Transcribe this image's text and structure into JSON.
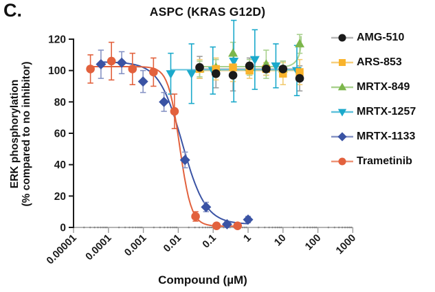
{
  "panel_label": "C.",
  "title": "ASPC (KRAS G12D)",
  "axes": {
    "x": {
      "label": "Compound (µM)",
      "scale": "log",
      "min_exp": -5,
      "max_exp": 3,
      "ticks": [
        "0.00001",
        "0.0001",
        "0.001",
        "0.01",
        "0.1",
        "1",
        "10",
        "100",
        "1000"
      ]
    },
    "y": {
      "label_line1": "ERK phosphorylation",
      "label_line2": "(% compared to no inhibitor)",
      "ticks": [
        0,
        20,
        40,
        60,
        80,
        100,
        120
      ],
      "range": [
        0,
        120
      ]
    }
  },
  "legend": {
    "position": "right"
  },
  "chart_data": {
    "type": "scatter",
    "subtype": "dose-response-curves",
    "title": "ASPC (KRAS G12D)",
    "xlabel": "Compound (µM)",
    "ylabel": "ERK phosphorylation (% compared to no inhibitor)",
    "xscale": "log",
    "xlim": [
      1e-05,
      1000
    ],
    "ylim": [
      0,
      120
    ],
    "grid": false,
    "series": [
      {
        "name": "AMG-510",
        "marker": "circle",
        "color": "#1a1a1a",
        "fit_line": "#b5b5b5",
        "err_color": "#9c9c9c",
        "legend_line": "#b5b5b5",
        "x": [
          0.041,
          0.12,
          0.37,
          1.1,
          3.3,
          10,
          30
        ],
        "y": [
          102,
          98,
          97,
          103,
          101,
          101,
          95
        ],
        "err": [
          7,
          9,
          10,
          5,
          4,
          5,
          8
        ],
        "fit": {
          "type": "flat",
          "level": 101
        }
      },
      {
        "name": "ARS-853",
        "marker": "square",
        "color": "#F9B32B",
        "fit_line": "#F6CF7D",
        "err_color": "#F2CB72",
        "legend_line": "#F6CF7D",
        "x": [
          0.041,
          0.12,
          0.37,
          1.1,
          3.3,
          10,
          30
        ],
        "y": [
          101,
          101,
          102,
          100,
          101,
          98,
          99
        ],
        "err": [
          6,
          7,
          9,
          5,
          4,
          7,
          8
        ],
        "fit": {
          "type": "flat",
          "level": 100
        }
      },
      {
        "name": "MRTX-849",
        "marker": "triangle-up",
        "color": "#7CB64B",
        "fit_line": "#A9D18E",
        "err_color": "#A9D18E",
        "legend_line": "#A9D18E",
        "x": [
          0.041,
          0.12,
          0.37,
          1.1,
          3.3,
          10,
          30
        ],
        "y": [
          101,
          102,
          111,
          102,
          104,
          101,
          117
        ],
        "err": [
          5,
          5,
          7,
          5,
          9,
          5,
          6
        ],
        "fit": {
          "type": "flat-rise",
          "level": 102.5,
          "rise_to": 122
        }
      },
      {
        "name": "MRTX-1257",
        "marker": "triangle-down",
        "color": "#1BA9CB",
        "fit_line": "#5EC1DB",
        "err_color": "#1BA9CB",
        "legend_line": "#5EC1DB",
        "x": [
          0.0061,
          0.024,
          0.098,
          0.39,
          1.56,
          6.25,
          25
        ],
        "y": [
          98,
          98,
          100,
          106,
          107,
          103,
          100
        ],
        "err": [
          13,
          19,
          15,
          26,
          19,
          14,
          16
        ],
        "fit": {
          "type": "flat",
          "level": 100.5
        }
      },
      {
        "name": "MRTX-1133",
        "marker": "diamond",
        "color": "#3A53A4",
        "fit_line": "#3A53A4",
        "err_color": "#8693C5",
        "legend_line": "#8693C5",
        "x": [
          6.1e-05,
          0.00024,
          0.00098,
          0.0039,
          0.0156,
          0.0625,
          0.25,
          1
        ],
        "y": [
          104,
          105,
          93,
          80,
          43,
          13,
          2,
          5
        ],
        "err": [
          9,
          7,
          7,
          6,
          5,
          3,
          2,
          2
        ],
        "fit": {
          "type": "sigmoid",
          "top": 105.5,
          "bottom": 2,
          "ic50": 0.013,
          "hill": 1.3
        }
      },
      {
        "name": "Trametinib",
        "marker": "circle",
        "color": "#E2613D",
        "fit_line": "#E2613D",
        "err_color": "#E2613D",
        "legend_line": "#EE9478",
        "x": [
          3.05e-05,
          0.000122,
          0.000488,
          0.00195,
          0.0078,
          0.0313,
          0.125,
          0.5
        ],
        "y": [
          101,
          106,
          101,
          99,
          74,
          7,
          1,
          1
        ],
        "err": [
          9,
          12,
          10,
          9,
          11,
          3,
          1.5,
          1.5
        ],
        "fit": {
          "type": "sigmoid",
          "top": 102.5,
          "bottom": 0.8,
          "ic50": 0.011,
          "hill": 2.6
        }
      }
    ]
  }
}
